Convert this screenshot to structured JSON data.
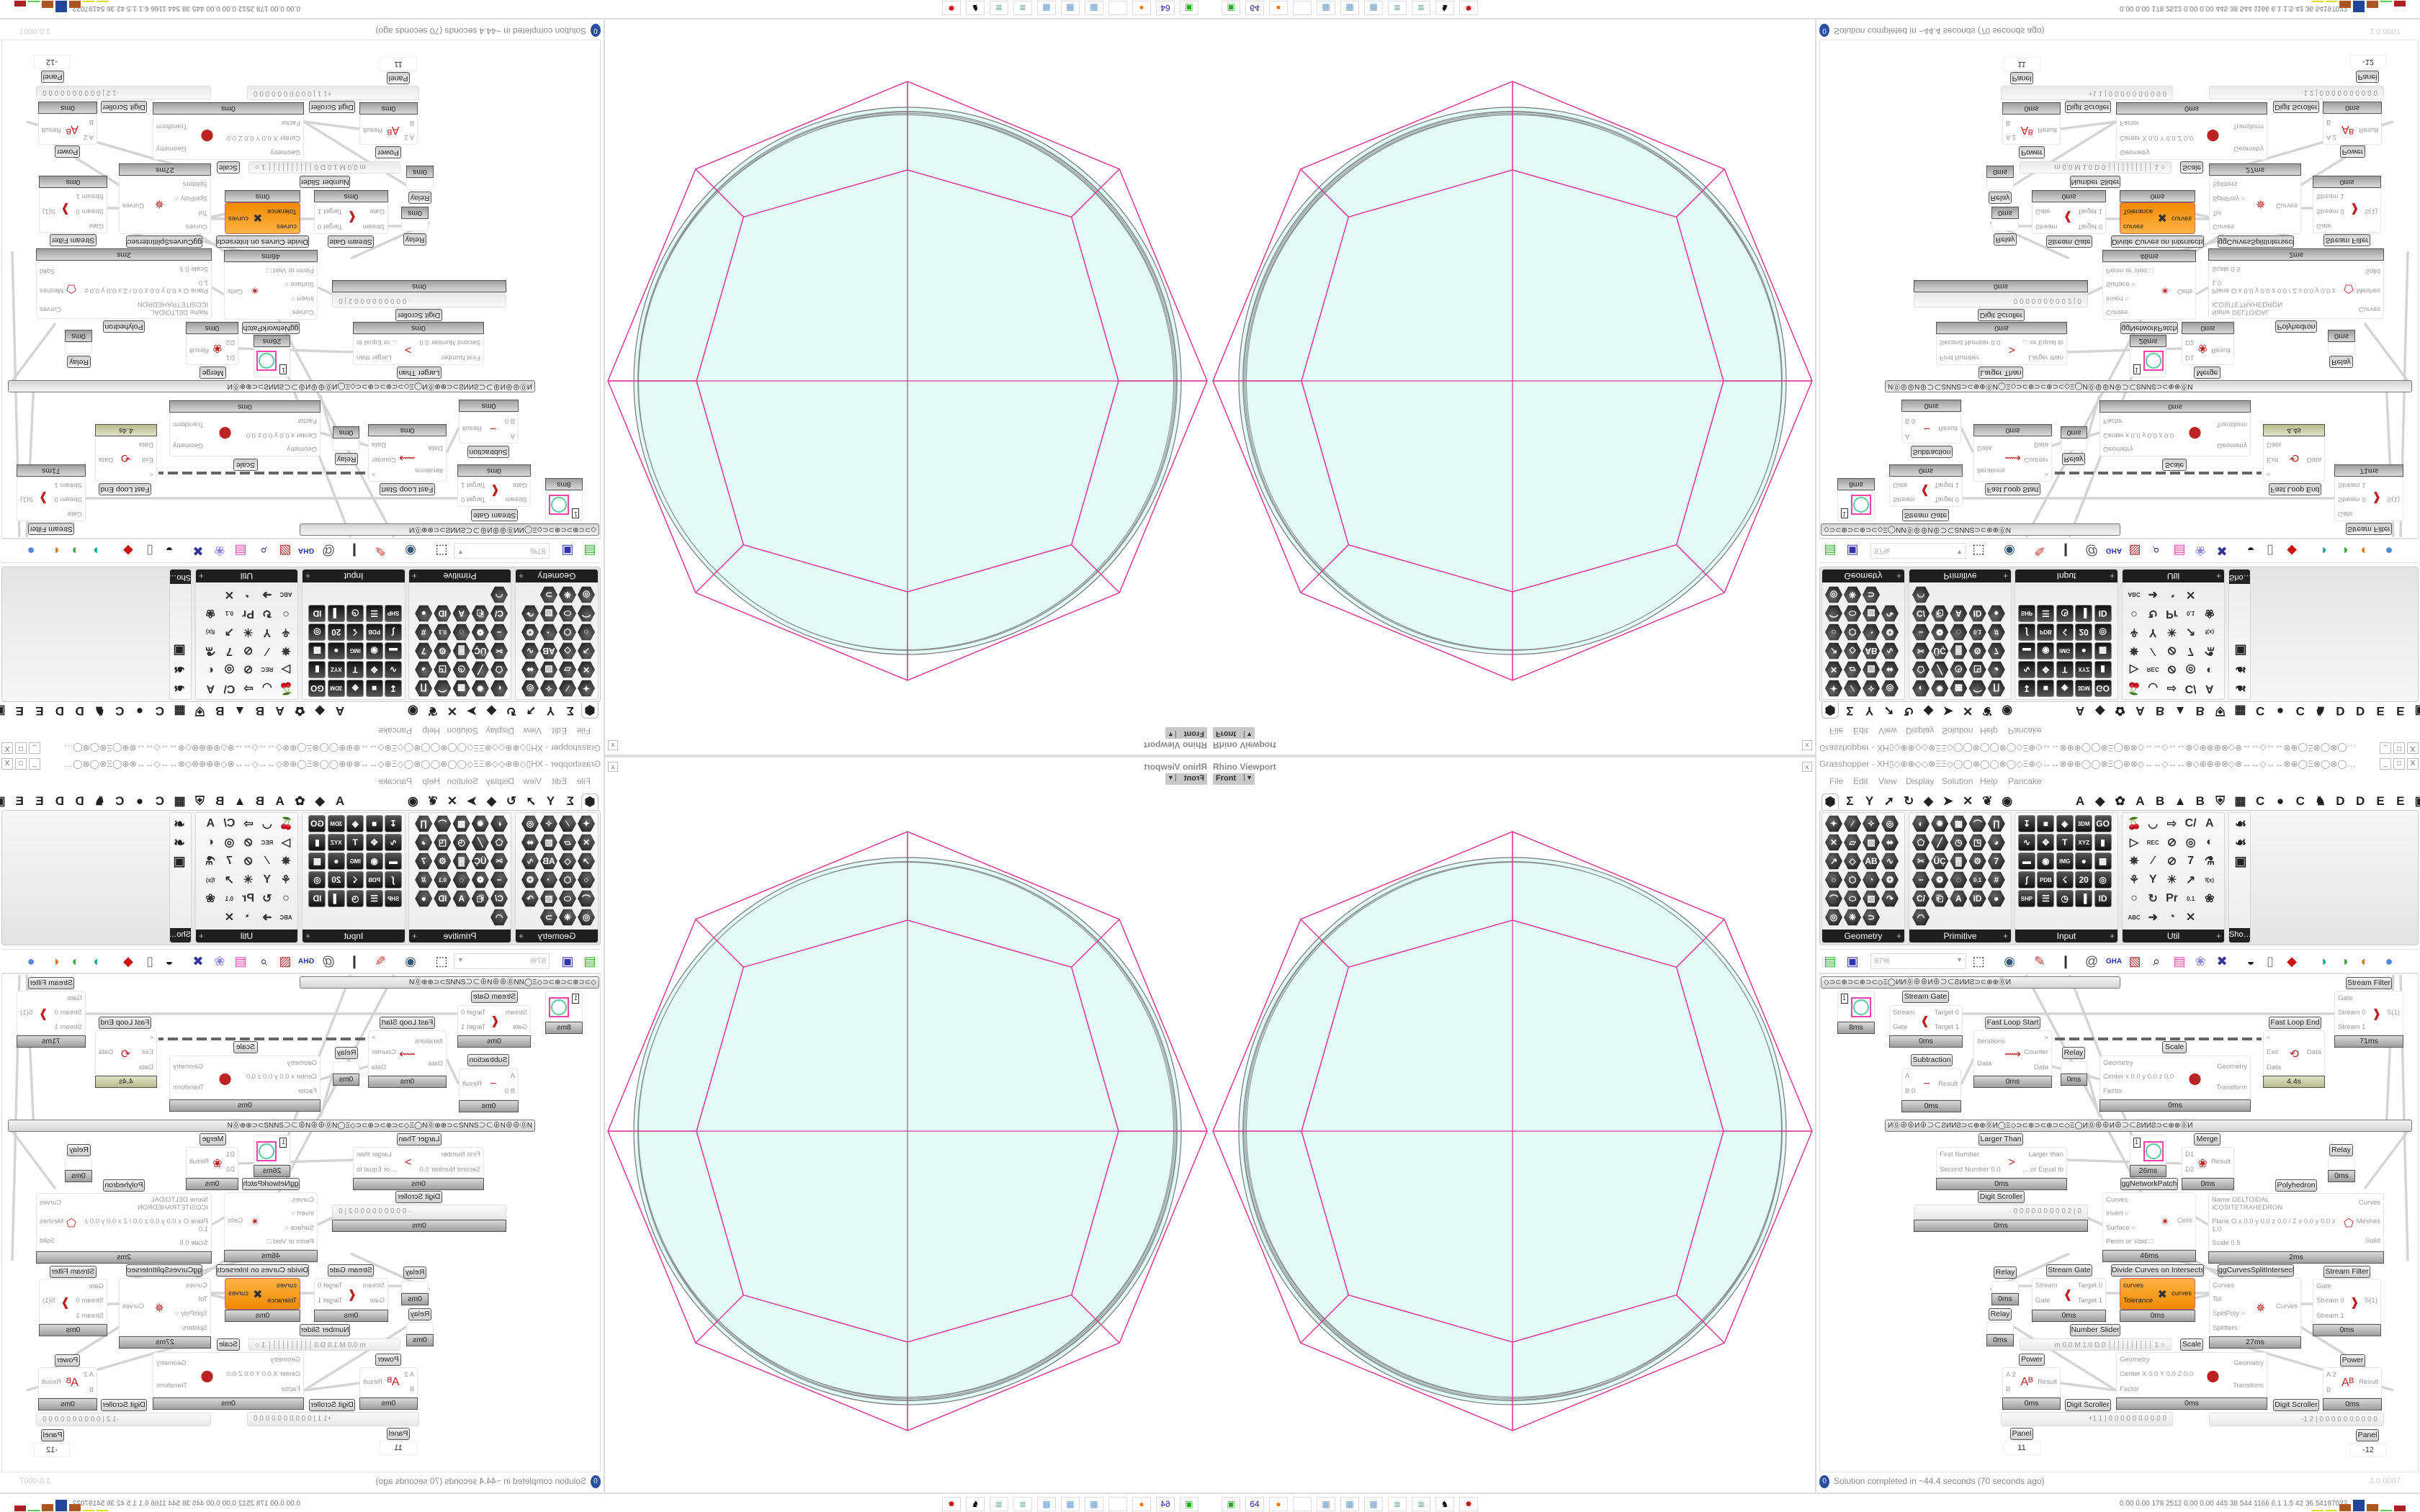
{
  "viewport": {
    "title": "Rhino Viewport",
    "view_tab": "Front",
    "close_label": "x",
    "pink": "#dc3a96",
    "fill": "#e2fcf5",
    "stroke": "#bcc6c3"
  },
  "window": {
    "title": "Grasshopper - XH▯◇⊕⊕◇◇⊗ΞΞ◇◯◯⊗◯◯⊗◯◇Ξ⊕◇↔↔⊗⊕⊕◯◯⊗Ξ◯⊕⊗◇↔↔◇↔↔⊗◇⊕⊕⊕⊗◇⊗↔↔◇↔↔⊗⊕◯Ξ⊗◯⊗◯…",
    "buttons": [
      "_",
      "□",
      "X"
    ]
  },
  "menu": [
    "File",
    "Edit",
    "View",
    "Display",
    "Solution",
    "Help",
    "Pancake"
  ],
  "tabs": {
    "left": [
      "⬢",
      "Σ",
      "Y",
      "➚",
      "↻",
      "◆",
      "➤",
      "✕",
      "❦",
      "◉"
    ],
    "right": [
      "A",
      "◆",
      "✿",
      "A",
      "B",
      "▲",
      "B",
      "⛨",
      "▦",
      "C",
      "●",
      "C",
      "♞",
      "D",
      "D",
      "E",
      "E",
      "▣"
    ]
  },
  "ribbon": [
    {
      "label": "Geometry",
      "style": "hex",
      "cols": 4,
      "icons": [
        "✦",
        "∕",
        "✧",
        "◎",
        "✕",
        "▱",
        "▨",
        "⬌",
        "↗",
        "◇",
        "AB",
        "∿",
        "○",
        "⬡",
        "◔",
        "❂",
        "⌒",
        "⬭",
        "▧",
        "↷",
        "◎",
        "❈",
        "⊃"
      ]
    },
    {
      "label": "Primitive",
      "style": "hex",
      "cols": 5,
      "icons": [
        "◐",
        "✹",
        "▦",
        "⌒",
        "∏",
        "⬠",
        "╱",
        "◷",
        "◳",
        "◕",
        "✂",
        "ÜÇ",
        "▓",
        "⚙",
        "7",
        "−",
        "❁",
        "◌",
        "0.1",
        "#",
        "C/",
        "⎗",
        "A",
        "ID",
        "●",
        "◠"
      ]
    },
    {
      "label": "Input",
      "style": "sq",
      "cols": 5,
      "icons": [
        "↧",
        "■",
        "◈",
        "3DM",
        "GO",
        "∿",
        "✥",
        "T",
        "XYZ",
        "▮",
        "▬",
        "◉",
        "IMG",
        "●",
        "▩",
        "∫",
        "PDB",
        "☇",
        "20",
        "◎",
        "SHP",
        "☰",
        "◷",
        "▐",
        "ID"
      ]
    },
    {
      "label": "Util",
      "style": "ut",
      "cols": 5,
      "icons": [
        "🍒",
        "◡",
        "⇨",
        "C/",
        "A",
        "▷",
        "REC",
        "⊘",
        "◎",
        "◐",
        "✵",
        "∕",
        "⊘",
        "7",
        "⚗",
        "⚘",
        "Y",
        "☀",
        "↗",
        "f(x)",
        "○",
        "↻",
        "Pr",
        "0.1",
        "❀",
        "ABC",
        "➜",
        "◔",
        "✕"
      ]
    },
    {
      "label": "Sho…",
      "style": "ut",
      "cols": 1,
      "icons": [
        "☙",
        "☙",
        "▣"
      ]
    }
  ],
  "toolbar": {
    "zoom_value": "97%",
    "icons": [
      {
        "name": "new-file-icon",
        "glyph": "▤",
        "color": "#3a3"
      },
      {
        "name": "save-icon",
        "glyph": "▣",
        "color": "#33a"
      },
      {
        "name": "zoom-extents-icon",
        "glyph": "⬚",
        "color": "#111"
      },
      {
        "name": "eye-icon",
        "glyph": "◉",
        "color": "#357"
      },
      {
        "name": "sketch-pen-icon",
        "glyph": "✎",
        "color": "#c33"
      },
      {
        "name": "magnet-icon",
        "glyph": "❙",
        "color": "#333"
      },
      {
        "name": "at-icon",
        "glyph": "@",
        "color": "#555"
      },
      {
        "name": "gha-icon",
        "glyph": "GHA",
        "color": "#23a"
      },
      {
        "name": "image-icon",
        "glyph": "▧",
        "color": "#a33"
      },
      {
        "name": "search-icon",
        "glyph": "⌕",
        "color": "#226"
      },
      {
        "name": "box-icon",
        "glyph": "▤",
        "color": "#d4a"
      },
      {
        "name": "bulb-icon",
        "glyph": "❀",
        "color": "#88d"
      },
      {
        "name": "twist-icon",
        "glyph": "✖",
        "color": "#339"
      },
      {
        "name": "bell-icon",
        "glyph": "◒",
        "color": "#222"
      },
      {
        "name": "cylinder-icon",
        "glyph": "▯",
        "color": "#777"
      },
      {
        "name": "red-box-icon",
        "glyph": "◆",
        "color": "#c11"
      },
      {
        "name": "teal-shape-icon",
        "glyph": "◗",
        "color": "#1a9"
      },
      {
        "name": "green-shape-icon",
        "glyph": "◑",
        "color": "#4a4"
      },
      {
        "name": "sphere-icon",
        "glyph": "◐",
        "color": "#d72"
      },
      {
        "name": "blue-sphere-icon",
        "glyph": "●",
        "color": "#58d"
      }
    ]
  },
  "groups": [
    "◇⊃⊂⊕⊃⊂⊕⊃⊂◇Ξ◯ИИ⓪⊕⊕И⊕⊃⊂ƧИИƧ⊃⊂⊕⊕⓪И",
    "И⓪⊕⊕И⊕⊃⊂ƧИИƧ⊃⊂⊕⊕⓪И◯Ξ◇⊃⊂⊕⊃⊂⊕⊃⊂◇Ξ◯И⓪⊕⊕И⊕⊃⊂ƧИИƧ⊃⊂⊕⊕⓪И"
  ],
  "components": [
    {
      "type": "param",
      "value": "1",
      "time": "8ms"
    },
    {
      "type": "comp",
      "title": "Stream Gate",
      "inputs": [
        "Stream",
        "Gate"
      ],
      "outputs": [
        "Target 0",
        "Target 1"
      ],
      "time": "0ms",
      "icon": "❰"
    },
    {
      "type": "comp",
      "title": "Fast Loop Start",
      "inputs": [
        "Iterations",
        "Data"
      ],
      "outputs": [
        ">",
        "Counter",
        "Data"
      ],
      "time": "0ms",
      "icon": "⟿"
    },
    {
      "type": "relay",
      "title": "Relay",
      "time": "0ms"
    },
    {
      "type": "comp",
      "title": "Scale",
      "inputs": [
        "Geometry",
        "Center x 0.0 y 0.0 z 0.0",
        "Factor"
      ],
      "outputs": [
        "Geometry",
        "Transform"
      ],
      "time": "0ms",
      "icon": "⬤"
    },
    {
      "type": "comp",
      "title": "Fast Loop End",
      "inputs": [
        "<",
        "Exit",
        "Data"
      ],
      "outputs": [
        "Data"
      ],
      "time": "4.4s",
      "icon": "⟲",
      "olive": true
    },
    {
      "type": "comp",
      "title": "Stream Filter",
      "inputs": [
        "Gate",
        "Stream 0",
        "Stream 1"
      ],
      "outputs": [
        "S(1)"
      ],
      "time": "71ms",
      "icon": "❱"
    },
    {
      "type": "comp",
      "title": "Subtraction",
      "inputs": [
        "A",
        "B 0"
      ],
      "outputs": [
        "Result"
      ],
      "time": "0ms",
      "icon": "−"
    },
    {
      "type": "comp",
      "title": "Larger Than",
      "inputs": [
        "First Number",
        "Second Number 0.0"
      ],
      "outputs": [
        "Larger than",
        "... or Equal to"
      ],
      "time": "0ms",
      "icon": ">"
    },
    {
      "type": "param",
      "value": "1",
      "time": "26ms"
    },
    {
      "type": "comp",
      "title": "Merge",
      "inputs": [
        "D1",
        "D2"
      ],
      "outputs": [
        "Result"
      ],
      "time": "0ms",
      "icon": "❀"
    },
    {
      "type": "relay",
      "title": "Relay",
      "time": "0ms"
    },
    {
      "type": "comp",
      "title": "Polyhedron",
      "inputs": [
        "Name DELTOIDAL ICOSITETRAHEDRON",
        "Plane  O x 0.0 y 0.0 z 0.0 / Z x 0.0 y 0.0 z 1.0",
        "Scale 0.5"
      ],
      "outputs": [
        "Curves",
        "Meshes",
        "Solid"
      ],
      "time": "2ms",
      "icon": "⬠"
    },
    {
      "type": "slider",
      "title": "Digit Scroller",
      "value": "· 0 0 0 0 0 0 0 0 0 2 | 0",
      "time": "0ms"
    },
    {
      "type": "comp",
      "title": "ggNetworkPatch",
      "inputs": [
        "Curves",
        "Invert ○",
        "Surface ○",
        "Perim or Void □"
      ],
      "outputs": [
        "Cells"
      ],
      "time": "46ms",
      "icon": "✴"
    },
    {
      "type": "relay",
      "title": "Relay",
      "time": "0ms"
    },
    {
      "type": "relay",
      "title": "Relay",
      "time": "0ms"
    },
    {
      "type": "comp",
      "title": "Stream Gate",
      "inputs": [
        "Stream",
        "Gate"
      ],
      "outputs": [
        "Target 0",
        "Target 1"
      ],
      "time": "0ms",
      "icon": "❰"
    },
    {
      "type": "comp",
      "title": "Divide Curves on Intersects",
      "inputs": [
        "curves",
        "Tolerance"
      ],
      "outputs": [
        "curves"
      ],
      "time": "0ms",
      "icon": "✖",
      "orange": true
    },
    {
      "type": "comp",
      "title": "ggCurvesSplitIntersect",
      "inputs": [
        "Curves",
        "Tol",
        "SplitPoly ○",
        "Splitters"
      ],
      "outputs": [
        "Curves"
      ],
      "time": "27ms",
      "icon": "✵"
    },
    {
      "type": "comp",
      "title": "Stream Filter",
      "inputs": [
        "Gate",
        "Stream 0",
        "Stream 1"
      ],
      "outputs": [
        "S(1)"
      ],
      "time": "0ms",
      "icon": "❱"
    },
    {
      "type": "slider",
      "title": "Number Slider",
      "value": "m 0.0  M 1.0  D 0   ││││││││││ 1 ○"
    },
    {
      "type": "comp",
      "title": "Power",
      "inputs": [
        "A 2",
        "B"
      ],
      "outputs": [
        "Result"
      ],
      "time": "0ms",
      "icon": "Aᴮ"
    },
    {
      "type": "comp",
      "title": "Scale",
      "inputs": [
        "Geometry",
        "Center X 0.0 Y 0.0 Z 0.0",
        "Factor"
      ],
      "outputs": [
        "Geometry",
        "Transform"
      ],
      "time": "0ms",
      "icon": "⬤"
    },
    {
      "type": "slider",
      "title": "Digit Scroller",
      "value": "+1 1 | 0 0 0 0 0 0 0 0 0 0"
    },
    {
      "type": "slider",
      "title": "Digit Scroller",
      "value": "-1 2 | 0 0 0 0 0 0 0 0 0 0"
    },
    {
      "type": "comp",
      "title": "Power",
      "inputs": [
        "A 2",
        "B"
      ],
      "outputs": [
        "Result"
      ],
      "time": "0ms",
      "icon": "Aᴮ"
    },
    {
      "type": "panel",
      "title": "Panel",
      "value": "11"
    },
    {
      "type": "panel",
      "title": "Panel",
      "value": "-12"
    }
  ],
  "status": {
    "message": "Solution completed in ~44.4 seconds (70 seconds ago)",
    "version": "1.0.0007"
  },
  "taskbar": {
    "apps": [
      {
        "name": "terminal-icon",
        "glyph": "▣",
        "color": "#2a2"
      },
      {
        "name": "floppy-64-icon",
        "glyph": "64",
        "color": "#22a"
      },
      {
        "name": "firefox-icon",
        "glyph": "●",
        "color": "#e70"
      },
      {
        "name": "blank-icon",
        "glyph": "",
        "color": "#ccc"
      },
      {
        "name": "calculator-icon",
        "glyph": "▦",
        "color": "#69c"
      },
      {
        "name": "calculator-icon",
        "glyph": "▦",
        "color": "#69c"
      },
      {
        "name": "calculator-icon",
        "glyph": "▦",
        "color": "#69c"
      },
      {
        "name": "notepad-icon",
        "glyph": "≣",
        "color": "#7aa"
      },
      {
        "name": "notepad-icon",
        "glyph": "≣",
        "color": "#7aa"
      },
      {
        "name": "wolf-icon",
        "glyph": "♞",
        "color": "#000"
      },
      {
        "name": "red-app-icon",
        "glyph": "✹",
        "color": "#c11"
      }
    ],
    "stats": "0.00 0.00 178 2512 0.00 0.00 445  38  544 1166 6.1  1.5  42  36  54197022",
    "meter_colors": [
      "#dd2",
      "#dd2",
      "#a52",
      "#249",
      "#a52",
      "#5c5",
      "#a22"
    ]
  }
}
